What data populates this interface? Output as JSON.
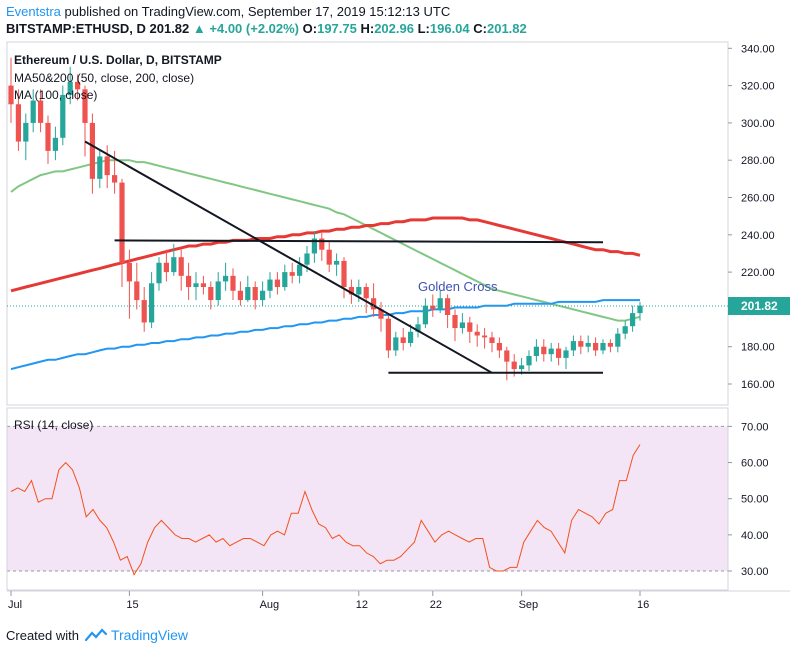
{
  "header": {
    "author": "Eventstra",
    "published_text": "published on TradingView.com, September 17, 2019 15:12:13 UTC",
    "symbol": "BITSTAMP:ETHUSD, D",
    "last": "201.82",
    "change": "+4.00 (+2.02%)",
    "o_label": "O:",
    "o_value": "197.75",
    "h_label": "H:",
    "h_value": "202.96",
    "l_label": "L:",
    "l_value": "196.04",
    "c_label": "C:",
    "c_value": "201.82"
  },
  "legend": {
    "title": "Ethereum / U.S. Dollar, D, BITSTAMP",
    "ma50_200": "MA50&200 (50, close, 200, close)",
    "ma100": "MA (100, close)"
  },
  "annotation": "Golden Cross",
  "rsi_label": "RSI (14, close)",
  "footer": {
    "created_with": "Created with",
    "brand": "TradingView"
  },
  "colors": {
    "up": "#26a69a",
    "down": "#ef5350",
    "ma50": "#81c784",
    "ma200": "#e53935",
    "ma100": "#2196f3",
    "rsi": "#f4511e",
    "rsi_band": "#f3e5f5",
    "price_tag": "#26a69a"
  },
  "chart_data": [
    {
      "type": "candlestick",
      "title": "Ethereum / U.S. Dollar, D, BITSTAMP",
      "x_tick_labels": [
        "Jul",
        "15",
        "Aug",
        "12",
        "22",
        "Sep",
        "16"
      ],
      "y_tick_labels": [
        "340.00",
        "320.00",
        "300.00",
        "280.00",
        "260.00",
        "240.00",
        "220.00",
        "200.00",
        "180.00",
        "160.00"
      ],
      "ylim": [
        150,
        343
      ],
      "current_price": 201.82,
      "candles": [
        [
          320,
          310,
          335,
          300
        ],
        [
          310,
          290,
          318,
          285
        ],
        [
          290,
          300,
          305,
          280
        ],
        [
          300,
          312,
          318,
          295
        ],
        [
          312,
          300,
          318,
          295
        ],
        [
          300,
          285,
          304,
          278
        ],
        [
          285,
          292,
          298,
          280
        ],
        [
          292,
          315,
          320,
          288
        ],
        [
          315,
          322,
          330,
          310
        ],
        [
          322,
          318,
          326,
          312
        ],
        [
          318,
          300,
          320,
          282
        ],
        [
          300,
          270,
          305,
          262
        ],
        [
          270,
          282,
          285,
          265
        ],
        [
          282,
          272,
          288,
          265
        ],
        [
          272,
          268,
          285,
          262
        ],
        [
          268,
          225,
          270,
          212
        ],
        [
          225,
          215,
          232,
          195
        ],
        [
          215,
          205,
          225,
          200
        ],
        [
          205,
          193,
          212,
          188
        ],
        [
          193,
          214,
          220,
          190
        ],
        [
          214,
          225,
          228,
          210
        ],
        [
          225,
          220,
          232,
          215
        ],
        [
          220,
          228,
          235,
          218
        ],
        [
          228,
          218,
          232,
          210
        ],
        [
          218,
          212,
          225,
          205
        ],
        [
          212,
          214,
          220,
          205
        ],
        [
          214,
          212,
          218,
          208
        ],
        [
          212,
          205,
          215,
          200
        ],
        [
          205,
          215,
          220,
          202
        ],
        [
          215,
          218,
          225,
          210
        ],
        [
          218,
          210,
          222,
          205
        ],
        [
          210,
          205,
          215,
          202
        ],
        [
          205,
          212,
          218,
          204
        ],
        [
          212,
          205,
          215,
          200
        ],
        [
          205,
          210,
          215,
          202
        ],
        [
          210,
          216,
          220,
          206
        ],
        [
          216,
          212,
          220,
          208
        ],
        [
          212,
          220,
          224,
          210
        ],
        [
          220,
          218,
          225,
          214
        ],
        [
          218,
          224,
          228,
          214
        ],
        [
          224,
          230,
          234,
          220
        ],
        [
          230,
          238,
          242,
          225
        ],
        [
          238,
          232,
          241,
          226
        ],
        [
          232,
          224,
          236,
          220
        ],
        [
          224,
          226,
          230,
          218
        ],
        [
          226,
          212,
          228,
          206
        ],
        [
          212,
          208,
          216,
          203
        ],
        [
          208,
          212,
          216,
          204
        ],
        [
          212,
          206,
          214,
          198
        ],
        [
          206,
          200,
          214,
          196
        ],
        [
          200,
          195,
          204,
          188
        ],
        [
          195,
          178,
          198,
          174
        ],
        [
          178,
          185,
          188,
          175
        ],
        [
          185,
          182,
          190,
          178
        ],
        [
          182,
          188,
          192,
          180
        ],
        [
          188,
          192,
          196,
          185
        ],
        [
          192,
          202,
          206,
          190
        ],
        [
          202,
          200,
          208,
          196
        ],
        [
          200,
          206,
          210,
          198
        ],
        [
          206,
          197,
          208,
          190
        ],
        [
          197,
          190,
          200,
          183
        ],
        [
          190,
          193,
          198,
          187
        ],
        [
          193,
          188,
          196,
          182
        ],
        [
          188,
          186,
          192,
          180
        ],
        [
          186,
          185,
          190,
          179
        ],
        [
          185,
          182,
          188,
          177
        ],
        [
          182,
          178,
          185,
          174
        ],
        [
          178,
          172,
          180,
          162
        ],
        [
          172,
          168,
          176,
          164
        ],
        [
          168,
          170,
          174,
          165
        ],
        [
          170,
          175,
          178,
          167
        ],
        [
          175,
          180,
          184,
          172
        ],
        [
          180,
          176,
          184,
          172
        ],
        [
          176,
          179,
          182,
          172
        ],
        [
          179,
          174,
          182,
          170
        ],
        [
          174,
          178,
          180,
          168
        ],
        [
          178,
          183,
          186,
          175
        ],
        [
          183,
          180,
          186,
          176
        ],
        [
          180,
          182,
          186,
          177
        ],
        [
          182,
          178,
          185,
          175
        ],
        [
          178,
          182,
          184,
          176
        ],
        [
          182,
          180,
          184,
          177
        ],
        [
          180,
          187,
          190,
          177
        ],
        [
          187,
          191,
          194,
          184
        ],
        [
          191,
          198,
          202,
          188
        ],
        [
          198,
          202,
          204,
          194
        ]
      ],
      "ma50": [
        263,
        266,
        268,
        270,
        272,
        273,
        274,
        274,
        275,
        276,
        277,
        278,
        279,
        280,
        280,
        280,
        280,
        279,
        279,
        278,
        277,
        276,
        275,
        274,
        273,
        272,
        271,
        270,
        269,
        268,
        267,
        266,
        265,
        264,
        263,
        262,
        261,
        260,
        259,
        258,
        257,
        256,
        255,
        254,
        252,
        251,
        249,
        247,
        245,
        243,
        241,
        239,
        237,
        235,
        233,
        231,
        229,
        227,
        225,
        223,
        221,
        219,
        217,
        215,
        213,
        211,
        210,
        209,
        208,
        207,
        206,
        205,
        204,
        203,
        202,
        201,
        200,
        199,
        198,
        197,
        196,
        195,
        194,
        194,
        195,
        196
      ],
      "ma200": [
        210,
        211,
        212,
        213,
        214,
        215,
        216,
        217,
        218,
        219,
        220,
        221,
        222,
        223,
        224,
        225,
        226,
        227,
        228,
        229,
        230,
        231,
        232,
        233,
        234,
        234,
        235,
        235,
        236,
        236,
        237,
        237,
        237,
        238,
        238,
        238,
        239,
        239,
        240,
        240,
        241,
        241,
        242,
        242,
        243,
        243,
        244,
        244,
        245,
        245,
        246,
        246,
        247,
        247,
        248,
        248,
        248,
        249,
        249,
        249,
        249,
        249,
        248,
        248,
        247,
        246,
        245,
        244,
        243,
        242,
        241,
        240,
        239,
        238,
        237,
        236,
        235,
        234,
        233,
        232,
        232,
        231,
        231,
        230,
        230,
        229
      ],
      "ma100": [
        168,
        169,
        170,
        171,
        172,
        173,
        173,
        174,
        175,
        176,
        176,
        177,
        178,
        179,
        179,
        180,
        180,
        181,
        181,
        182,
        182,
        183,
        183,
        184,
        184,
        185,
        185,
        186,
        186,
        187,
        187,
        188,
        188,
        189,
        189,
        190,
        190,
        191,
        191,
        192,
        192,
        193,
        193,
        194,
        194,
        195,
        195,
        196,
        196,
        197,
        197,
        197,
        198,
        198,
        199,
        199,
        199,
        200,
        200,
        200,
        201,
        201,
        201,
        201,
        202,
        202,
        202,
        202,
        203,
        203,
        203,
        203,
        203,
        203,
        204,
        204,
        204,
        204,
        204,
        204,
        205,
        205,
        205,
        205,
        205,
        205
      ],
      "trendlines": [
        {
          "from": [
            10,
            290
          ],
          "to": [
            65,
            166
          ]
        },
        {
          "from": [
            14,
            237
          ],
          "to": [
            80,
            236
          ]
        },
        {
          "from": [
            51,
            166
          ],
          "to": [
            80,
            166
          ]
        }
      ],
      "annotation": {
        "text": "Golden Cross",
        "at": [
          55,
          212
        ]
      }
    },
    {
      "type": "line",
      "title": "RSI (14, close)",
      "y_tick_labels": [
        "70.00",
        "60.00",
        "50.00",
        "40.00",
        "30.00"
      ],
      "ylim": [
        26,
        73
      ],
      "band": [
        30,
        70
      ],
      "values": [
        52,
        53,
        52,
        55,
        49,
        50,
        50,
        58,
        60,
        58,
        53,
        45,
        47,
        44,
        42,
        38,
        33,
        34,
        29,
        32,
        38,
        42,
        44,
        42,
        40,
        39,
        39,
        38,
        39,
        40,
        38,
        39,
        37,
        38,
        39,
        39,
        38,
        37,
        40,
        41,
        40,
        46,
        46,
        52,
        47,
        43,
        42,
        39,
        40,
        38,
        37,
        37,
        35,
        34,
        32,
        33,
        33,
        34,
        36,
        38,
        44,
        41,
        38,
        40,
        41,
        40,
        39,
        38,
        39,
        39,
        31,
        30,
        30,
        31,
        31,
        38,
        41,
        44,
        42,
        41,
        38,
        35,
        44,
        47,
        46,
        45,
        43,
        46,
        47,
        55,
        55,
        62,
        65
      ]
    }
  ]
}
